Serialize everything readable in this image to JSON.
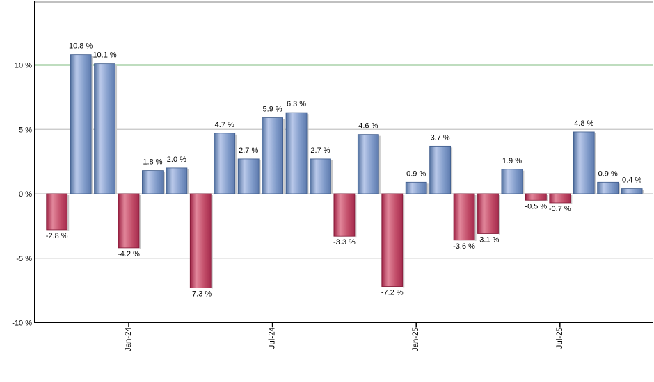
{
  "chart_data": {
    "type": "bar",
    "title": "",
    "unit": "%",
    "values": [
      -2.8,
      10.8,
      10.1,
      -4.2,
      1.8,
      2.0,
      -7.3,
      4.7,
      2.7,
      5.9,
      6.3,
      2.7,
      -3.3,
      4.6,
      -7.2,
      0.9,
      3.7,
      -3.6,
      -3.1,
      1.9,
      -0.5,
      -0.7,
      4.8,
      0.9,
      0.4
    ],
    "bar_labels": [
      "-2.8 %",
      "10.8 %",
      "10.1 %",
      "-4.2 %",
      "1.8 %",
      "2.0 %",
      "-7.3 %",
      "4.7 %",
      "2.7 %",
      "5.9 %",
      "6.3 %",
      "2.7 %",
      "-3.3 %",
      "4.6 %",
      "-7.2 %",
      "0.9 %",
      "3.7 %",
      "-3.6 %",
      "-3.1 %",
      "1.9 %",
      "-0.5 %",
      "-0.7 %",
      "4.8 %",
      "0.9 %",
      "0.4 %"
    ],
    "x_tick_labels": [
      {
        "bar_index": 3,
        "label": "Jan-24"
      },
      {
        "bar_index": 9,
        "label": "Jul-24"
      },
      {
        "bar_index": 15,
        "label": "Jan-25"
      },
      {
        "bar_index": 21,
        "label": "Jul-25"
      }
    ],
    "y_axis": {
      "min": -10,
      "max": 14.9,
      "ticks": [
        {
          "value": 10,
          "label": "10 %"
        },
        {
          "value": 5,
          "label": "5 %"
        },
        {
          "value": 0,
          "label": "0 %"
        },
        {
          "value": -5,
          "label": "-5 %"
        },
        {
          "value": -10,
          "label": "-10 %"
        }
      ]
    },
    "reference_line": {
      "value": 10,
      "color": "#007800"
    },
    "grid": true,
    "legend": "none",
    "colors": {
      "positive_base": "#6c8cc0",
      "negative_base": "#c54a66",
      "positive_gradient": [
        {
          "offset": 0,
          "color": "#51709f"
        },
        {
          "offset": 0.3,
          "color": "#bac9ea"
        },
        {
          "offset": 0.7,
          "color": "#7e99c8"
        },
        {
          "offset": 1,
          "color": "#5e7bae"
        }
      ],
      "negative_gradient": [
        {
          "offset": 0,
          "color": "#9c2143"
        },
        {
          "offset": 0.3,
          "color": "#e2879b"
        },
        {
          "offset": 0.7,
          "color": "#c04a66"
        },
        {
          "offset": 1,
          "color": "#a52c4e"
        }
      ],
      "positive_stroke": "#3d5a8a",
      "negative_stroke": "#821836",
      "grid_line": "#c4c4c4",
      "axis_line": "#000000",
      "top_border": "#c0c0c0",
      "bar_shadow": "#c9c9c9",
      "label_text": "#000000"
    }
  }
}
